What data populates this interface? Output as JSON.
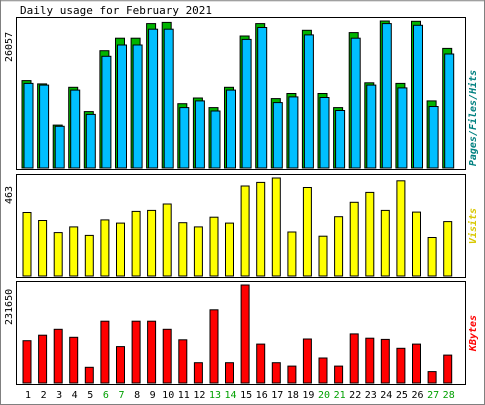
{
  "chart_data": [
    {
      "type": "bar",
      "title": "Daily usage for February 2021",
      "ylabel": "Pages/Files/Hits",
      "ymax_label": "26057",
      "ylim": [
        0,
        26057
      ],
      "categories": [
        "1",
        "2",
        "3",
        "4",
        "5",
        "6",
        "7",
        "8",
        "9",
        "10",
        "11",
        "12",
        "13",
        "14",
        "15",
        "16",
        "17",
        "18",
        "19",
        "20",
        "21",
        "22",
        "23",
        "24",
        "25",
        "26",
        "27",
        "28"
      ],
      "series": [
        {
          "name": "Hits",
          "color": "#00bfff",
          "values": [
            15000,
            14700,
            7400,
            13800,
            9500,
            19800,
            21800,
            21800,
            24600,
            24600,
            10700,
            11900,
            10100,
            13800,
            22800,
            24900,
            11600,
            12600,
            23600,
            12500,
            10200,
            23000,
            14700,
            25600,
            14200,
            25300,
            10900,
            20200
          ]
        },
        {
          "name": "Files",
          "color": "#00b400",
          "values": [
            15500,
            14900,
            7600,
            14300,
            10000,
            20800,
            23000,
            23000,
            25600,
            25800,
            11400,
            12400,
            10700,
            14300,
            23400,
            25600,
            12300,
            13200,
            24400,
            13200,
            10700,
            24000,
            15100,
            26057,
            15000,
            26000,
            11900,
            21200
          ]
        },
        {
          "name": "Pages",
          "color": "#008080",
          "values": [
            13000,
            12500,
            6500,
            12000,
            8300,
            17500,
            18800,
            19000,
            22000,
            21500,
            9200,
            10500,
            9000,
            12000,
            20000,
            21500,
            10200,
            11000,
            20500,
            11000,
            9000,
            20000,
            12800,
            22500,
            12500,
            22000,
            9500,
            17500
          ]
        }
      ]
    },
    {
      "type": "bar",
      "ylabel": "Visits",
      "ymax_label": "463",
      "ylim": [
        0,
        463
      ],
      "series": [
        {
          "name": "Visits",
          "color": "#ffff00",
          "values": [
            300,
            262,
            205,
            232,
            192,
            265,
            250,
            305,
            310,
            340,
            252,
            232,
            278,
            250,
            425,
            442,
            463,
            208,
            418,
            188,
            280,
            348,
            395,
            310,
            450,
            302,
            182,
            257
          ]
        }
      ]
    },
    {
      "type": "bar",
      "ylabel": "KBytes",
      "ymax_label": "231650",
      "ylim": [
        0,
        231650
      ],
      "series": [
        {
          "name": "KBytes",
          "color": "#ff0000",
          "values": [
            100000,
            113000,
            127000,
            108000,
            37000,
            146000,
            86000,
            146000,
            146000,
            127000,
            102000,
            48000,
            173000,
            48000,
            231650,
            92000,
            48000,
            40000,
            104000,
            59000,
            40000,
            116000,
            106000,
            103000,
            82000,
            92000,
            27000,
            66000
          ]
        }
      ]
    }
  ],
  "weekend_days": [
    "6",
    "7",
    "13",
    "14",
    "20",
    "21",
    "27",
    "28"
  ],
  "colors": {
    "border_light": "#ffffff",
    "border_dark": "#808080",
    "weekday_label": "#000000",
    "weekend_label": "#00a000",
    "bar_outline": "#000000"
  }
}
